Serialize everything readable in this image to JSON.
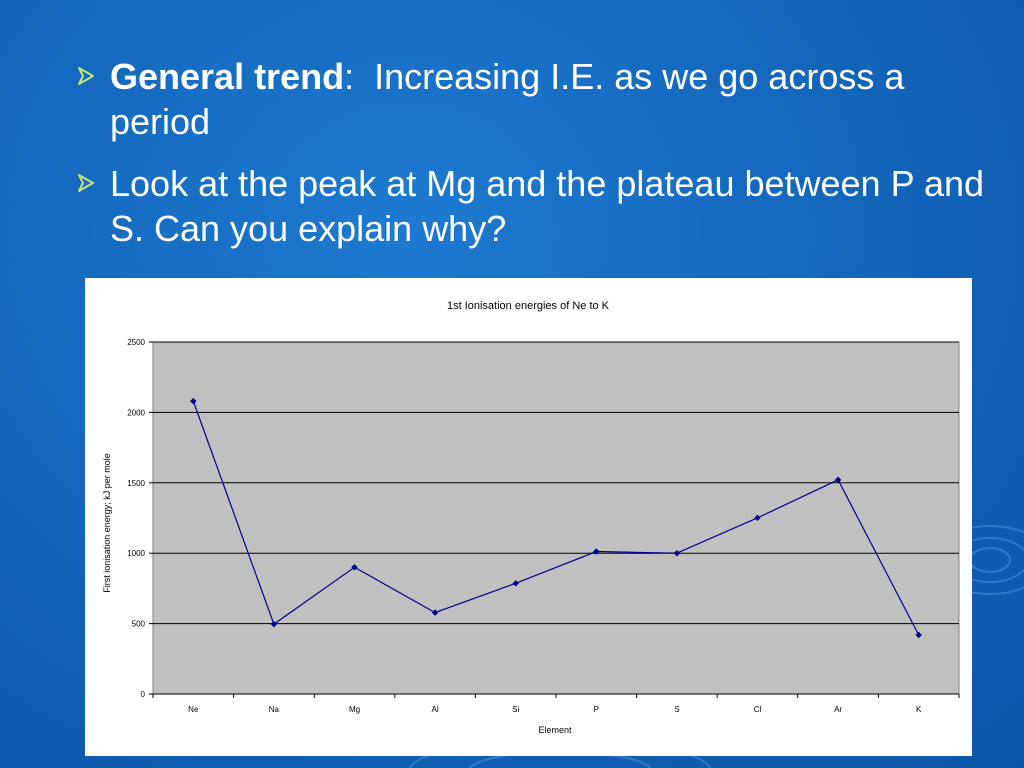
{
  "slide": {
    "bullets": [
      {
        "strong": "General trend",
        "colon": ":",
        "text": "  Increasing I.E. as we go across a period"
      },
      {
        "text": "Look at the peak at Mg and the plateau between P and S.  Can you explain why?"
      }
    ]
  },
  "colors": {
    "background": "#1468bd",
    "text": "#ffffff",
    "arrow": "#c9e07a",
    "plot_area": "#c0c0c0",
    "line": "#00008b"
  },
  "chart_data": {
    "type": "line",
    "title": "1st Ionisation energies of Ne to K",
    "xlabel": "Element",
    "ylabel": "First ionisation energy; kJ per mole",
    "categories": [
      "Ne",
      "Na",
      "Mg",
      "Al",
      "Si",
      "P",
      "S",
      "Cl",
      "Ar",
      "K"
    ],
    "series": [
      {
        "values": [
          2080,
          496,
          900,
          578,
          786,
          1012,
          1000,
          1251,
          1521,
          419
        ]
      }
    ],
    "ylim": [
      0,
      2500
    ],
    "yticks": [
      "0",
      "500",
      "1000",
      "1500",
      "2000",
      "2500"
    ],
    "grid": true,
    "legend": "none"
  }
}
